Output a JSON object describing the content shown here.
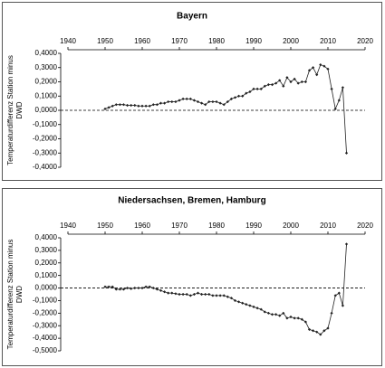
{
  "chart_data": [
    {
      "type": "line",
      "title": "Bayern",
      "y_label": [
        "Temperaturdifferenz Station minus",
        "DWD"
      ],
      "x": [
        1950,
        1951,
        1952,
        1953,
        1954,
        1955,
        1956,
        1957,
        1958,
        1959,
        1960,
        1961,
        1962,
        1963,
        1964,
        1965,
        1966,
        1967,
        1968,
        1969,
        1970,
        1971,
        1972,
        1973,
        1974,
        1975,
        1976,
        1977,
        1978,
        1979,
        1980,
        1981,
        1982,
        1983,
        1984,
        1985,
        1986,
        1987,
        1988,
        1989,
        1990,
        1991,
        1992,
        1993,
        1994,
        1995,
        1996,
        1997,
        1998,
        1999,
        2000,
        2001,
        2002,
        2003,
        2004,
        2005,
        2006,
        2007,
        2008,
        2009,
        2010,
        2011,
        2012,
        2013,
        2014,
        2015
      ],
      "values": [
        0.01,
        0.02,
        0.03,
        0.04,
        0.04,
        0.04,
        0.035,
        0.035,
        0.035,
        0.03,
        0.03,
        0.03,
        0.03,
        0.04,
        0.04,
        0.05,
        0.05,
        0.06,
        0.06,
        0.06,
        0.07,
        0.08,
        0.08,
        0.08,
        0.07,
        0.06,
        0.05,
        0.04,
        0.06,
        0.06,
        0.06,
        0.05,
        0.04,
        0.06,
        0.08,
        0.09,
        0.1,
        0.1,
        0.12,
        0.13,
        0.15,
        0.15,
        0.15,
        0.17,
        0.18,
        0.18,
        0.19,
        0.21,
        0.17,
        0.23,
        0.2,
        0.22,
        0.19,
        0.2,
        0.2,
        0.28,
        0.3,
        0.25,
        0.32,
        0.31,
        0.29,
        0.15,
        0.01,
        0.07,
        0.16,
        -0.3
      ],
      "color": "#222222",
      "xlim": [
        1940,
        2020
      ],
      "xticks": [
        1940,
        1950,
        1960,
        1970,
        1980,
        1990,
        2000,
        2010,
        2020
      ],
      "ylim": [
        -0.4,
        0.4
      ],
      "yticks": [
        {
          "value": 0.4,
          "label": "0,4000"
        },
        {
          "value": 0.3,
          "label": "0,3000"
        },
        {
          "value": 0.2,
          "label": "0,2000"
        },
        {
          "value": 0.1,
          "label": "0,1000"
        },
        {
          "value": 0,
          "label": "0,0000"
        },
        {
          "value": -0.1,
          "label": "-0,1000"
        },
        {
          "value": -0.2,
          "label": "-0,2000"
        },
        {
          "value": -0.3,
          "label": "-0,3000"
        },
        {
          "value": -0.4,
          "label": "-0,4000"
        }
      ],
      "hline": 0
    },
    {
      "type": "line",
      "title": "Niedersachsen, Bremen, Hamburg",
      "y_label": [
        "Temperaturdifferenz Station minus",
        "DWD"
      ],
      "x": [
        1950,
        1951,
        1952,
        1953,
        1954,
        1955,
        1956,
        1957,
        1958,
        1959,
        1960,
        1961,
        1962,
        1963,
        1964,
        1965,
        1966,
        1967,
        1968,
        1969,
        1970,
        1971,
        1972,
        1973,
        1974,
        1975,
        1976,
        1977,
        1978,
        1979,
        1980,
        1981,
        1982,
        1983,
        1984,
        1985,
        1986,
        1987,
        1988,
        1989,
        1990,
        1991,
        1992,
        1993,
        1994,
        1995,
        1996,
        1997,
        1998,
        1999,
        2000,
        2001,
        2002,
        2003,
        2004,
        2005,
        2006,
        2007,
        2008,
        2009,
        2010,
        2011,
        2012,
        2013,
        2014,
        2015
      ],
      "values": [
        0.01,
        0.01,
        0.01,
        -0.01,
        -0.01,
        -0.01,
        0,
        -0.005,
        0,
        0,
        0,
        0.01,
        0.01,
        0,
        -0.01,
        -0.02,
        -0.03,
        -0.04,
        -0.04,
        -0.045,
        -0.05,
        -0.05,
        -0.05,
        -0.06,
        -0.05,
        -0.04,
        -0.05,
        -0.05,
        -0.05,
        -0.06,
        -0.06,
        -0.06,
        -0.06,
        -0.07,
        -0.08,
        -0.1,
        -0.11,
        -0.12,
        -0.13,
        -0.14,
        -0.15,
        -0.16,
        -0.17,
        -0.19,
        -0.2,
        -0.21,
        -0.21,
        -0.22,
        -0.2,
        -0.24,
        -0.23,
        -0.24,
        -0.24,
        -0.25,
        -0.27,
        -0.33,
        -0.34,
        -0.35,
        -0.37,
        -0.34,
        -0.32,
        -0.2,
        -0.06,
        -0.04,
        -0.14,
        0.35
      ],
      "color": "#222222",
      "xlim": [
        1940,
        2020
      ],
      "xticks": [
        1940,
        1950,
        1960,
        1970,
        1980,
        1990,
        2000,
        2010,
        2020
      ],
      "ylim": [
        -0.5,
        0.4
      ],
      "yticks": [
        {
          "value": 0.4,
          "label": "0,4000"
        },
        {
          "value": 0.3,
          "label": "0,3000"
        },
        {
          "value": 0.2,
          "label": "0,2000"
        },
        {
          "value": 0.1,
          "label": "0,1000"
        },
        {
          "value": 0,
          "label": "0,0000"
        },
        {
          "value": -0.1,
          "label": "-0,1000"
        },
        {
          "value": -0.2,
          "label": "-0,2000"
        },
        {
          "value": -0.3,
          "label": "-0,3000"
        },
        {
          "value": -0.4,
          "label": "-0,4000"
        },
        {
          "value": -0.5,
          "label": "-0,5000"
        }
      ],
      "hline": 0
    }
  ]
}
